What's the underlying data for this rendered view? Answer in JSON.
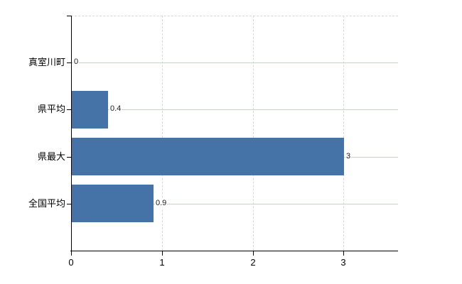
{
  "chart_data": {
    "type": "bar",
    "orientation": "horizontal",
    "title": "",
    "xlabel": "",
    "ylabel": "",
    "categories": [
      "真室川町",
      "県平均",
      "県最大",
      "全国平均"
    ],
    "values": [
      0,
      0.4,
      3,
      0.9
    ],
    "value_labels": [
      "0",
      "0.4",
      "3",
      "0.9"
    ],
    "x_tick_labels": [
      "0",
      "1",
      "2",
      "3"
    ],
    "x_ticks": [
      0,
      1,
      2,
      3
    ],
    "xlim": [
      0,
      3.6
    ],
    "grid": true,
    "legend": "none",
    "colors": {
      "bar": "#4572a7",
      "gridline_horizontal": "#c9d2c9",
      "gridline_vertical": "#d6d6d6",
      "axis": "#000000",
      "value_label_text": "#1a1a1a",
      "tick_label_text": "#000000",
      "background": "#ffffff"
    }
  }
}
